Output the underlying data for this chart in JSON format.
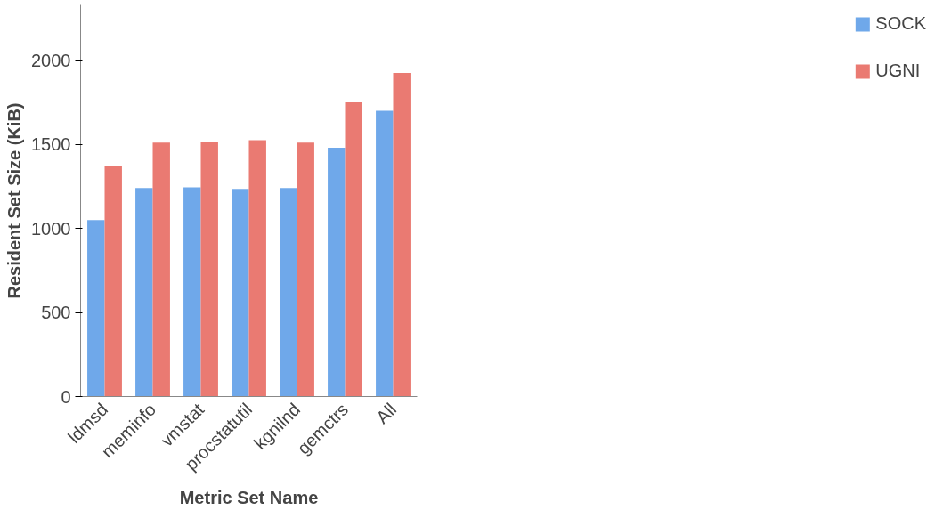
{
  "chart_data": {
    "type": "bar",
    "xlabel": "Metric Set Name",
    "ylabel": "Resident Set Size (KiB)",
    "categories": [
      "ldmsd",
      "meminfo",
      "vmstat",
      "procstatutil",
      "kgnilnd",
      "gemctrs",
      "All"
    ],
    "series": [
      {
        "name": "SOCK",
        "color": "#6fa8ea",
        "values": [
          1050,
          1240,
          1245,
          1235,
          1240,
          1480,
          1700
        ]
      },
      {
        "name": "UGNI",
        "color": "#ea7a72",
        "values": [
          1370,
          1510,
          1515,
          1525,
          1510,
          1750,
          1925
        ]
      }
    ],
    "ylim": [
      0,
      2330
    ],
    "yticks": [
      0,
      500,
      1000,
      1500,
      2000
    ],
    "grid": false,
    "legend": "right"
  }
}
